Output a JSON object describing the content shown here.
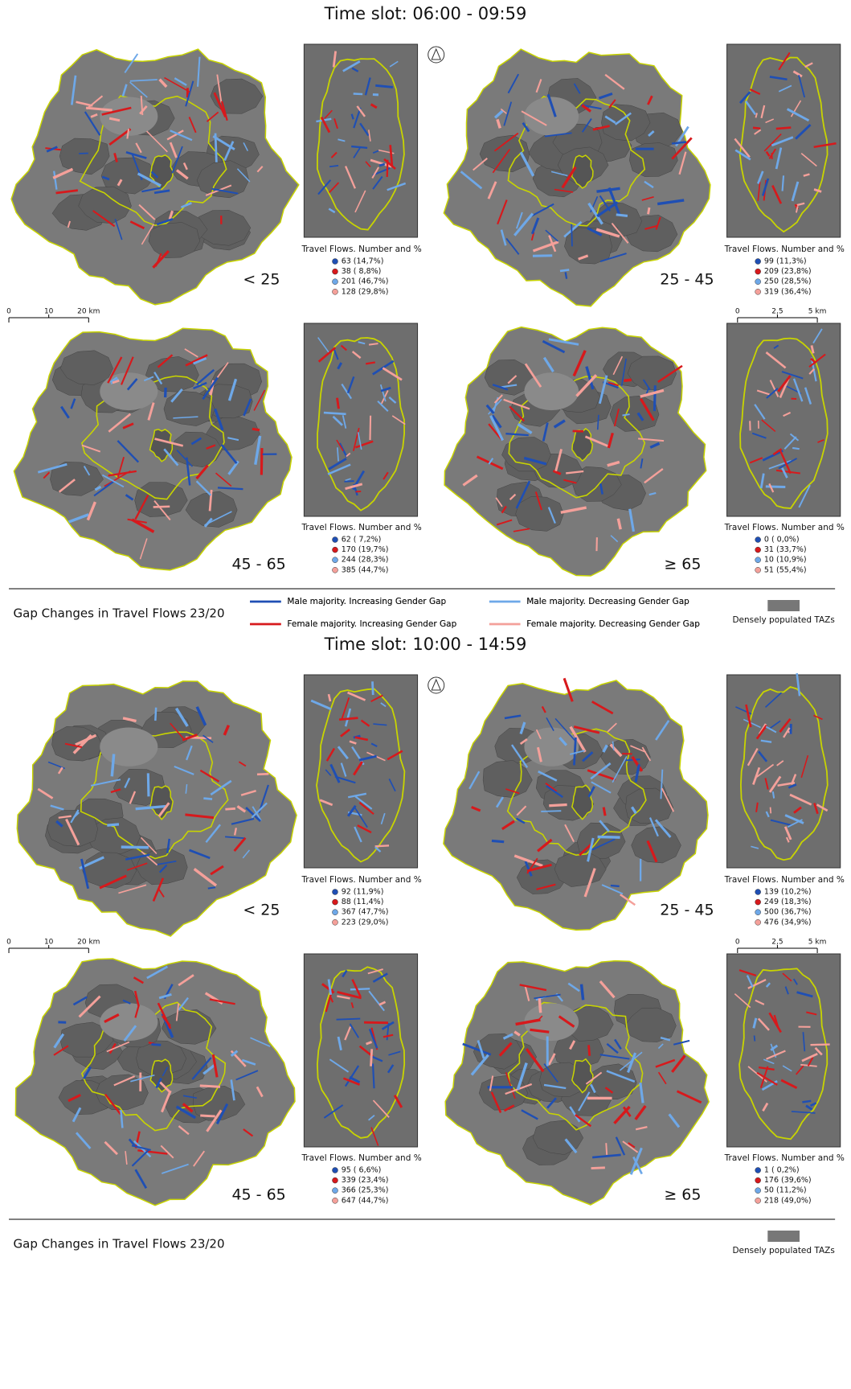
{
  "slots": [
    {
      "title": "Time slot: 06:00 - 09:59",
      "panels": [
        {
          "age": "< 25",
          "stats_title": "Travel Flows. Number and %",
          "stats": [
            "63  (14,7%)",
            "38  ( 8,8%)",
            "201  (46,7%)",
            "128  (29,8%)"
          ]
        },
        {
          "age": "25 - 45",
          "stats_title": "Travel Flows. Number and %",
          "stats": [
            "99  (11,3%)",
            "209  (23,8%)",
            "250  (28,5%)",
            "319  (36,4%)"
          ]
        },
        {
          "age": "45 - 65",
          "stats_title": "Travel Flows. Number and %",
          "stats": [
            "62  ( 7,2%)",
            "170  (19,7%)",
            "244  (28,3%)",
            "385  (44,7%)"
          ]
        },
        {
          "age": "≥ 65",
          "stats_title": "Travel Flows. Number and %",
          "stats": [
            "0  ( 0,0%)",
            "31  (33,7%)",
            "10  (10,9%)",
            "51  (55,4%)"
          ]
        }
      ]
    },
    {
      "title": "Time slot: 10:00 - 14:59",
      "panels": [
        {
          "age": "< 25",
          "stats_title": "Travel Flows. Number and %",
          "stats": [
            "92  (11,9%)",
            "88  (11,4%)",
            "367  (47,7%)",
            "223  (29,0%)"
          ]
        },
        {
          "age": "25 - 45",
          "stats_title": "Travel Flows. Number and %",
          "stats": [
            "139  (10,2%)",
            "249  (18,3%)",
            "500  (36,7%)",
            "476  (34,9%)"
          ]
        },
        {
          "age": "45 - 65",
          "stats_title": "Travel Flows. Number and %",
          "stats": [
            "95  ( 6,6%)",
            "339  (23,4%)",
            "366  (25,3%)",
            "647  (44,7%)"
          ]
        },
        {
          "age": "≥ 65",
          "stats_title": "Travel Flows. Number and %",
          "stats": [
            "1  ( 0,2%)",
            "176  (39,6%)",
            "50  (11,2%)",
            "218  (49,0%)"
          ]
        }
      ]
    }
  ],
  "scale_left": [
    "0",
    "10",
    "20 km"
  ],
  "scale_right": [
    "0",
    "2,5",
    "5 km"
  ],
  "legend": {
    "title": "Gap Changes in Travel Flows 23/20",
    "items": [
      {
        "label": "Male majority. Increasing Gender Gap",
        "color": "#1f4fb4"
      },
      {
        "label": "Female majority. Increasing Gender Gap",
        "color": "#d7191c"
      },
      {
        "label": "Male majority. Decreasing Gender Gap",
        "color": "#6ea8e8"
      },
      {
        "label": "Female majority. Decreasing Gender Gap",
        "color": "#f4a09a"
      }
    ],
    "dense": "Densely populated TAZs"
  }
}
